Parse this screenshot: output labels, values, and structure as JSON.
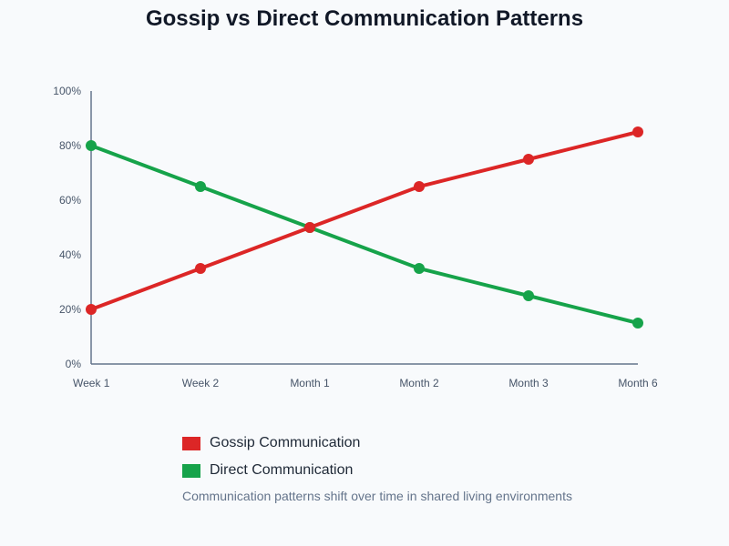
{
  "chart_data": {
    "type": "line",
    "title": "Gossip vs Direct Communication Patterns",
    "categories": [
      "Week 1",
      "Week 2",
      "Month 1",
      "Month 2",
      "Month 3",
      "Month 6"
    ],
    "ylim": [
      0,
      100
    ],
    "yticks": [
      "0%",
      "20%",
      "40%",
      "60%",
      "80%",
      "100%"
    ],
    "grid": false,
    "legend_placement": "bottom",
    "series": [
      {
        "name": "Gossip Communication",
        "color": "#dc2626",
        "values": [
          20,
          35,
          50,
          65,
          75,
          85
        ]
      },
      {
        "name": "Direct Communication",
        "color": "#16a34a",
        "values": [
          80,
          65,
          50,
          35,
          25,
          15
        ]
      }
    ],
    "note": "Communication patterns shift over time in shared living environments"
  }
}
